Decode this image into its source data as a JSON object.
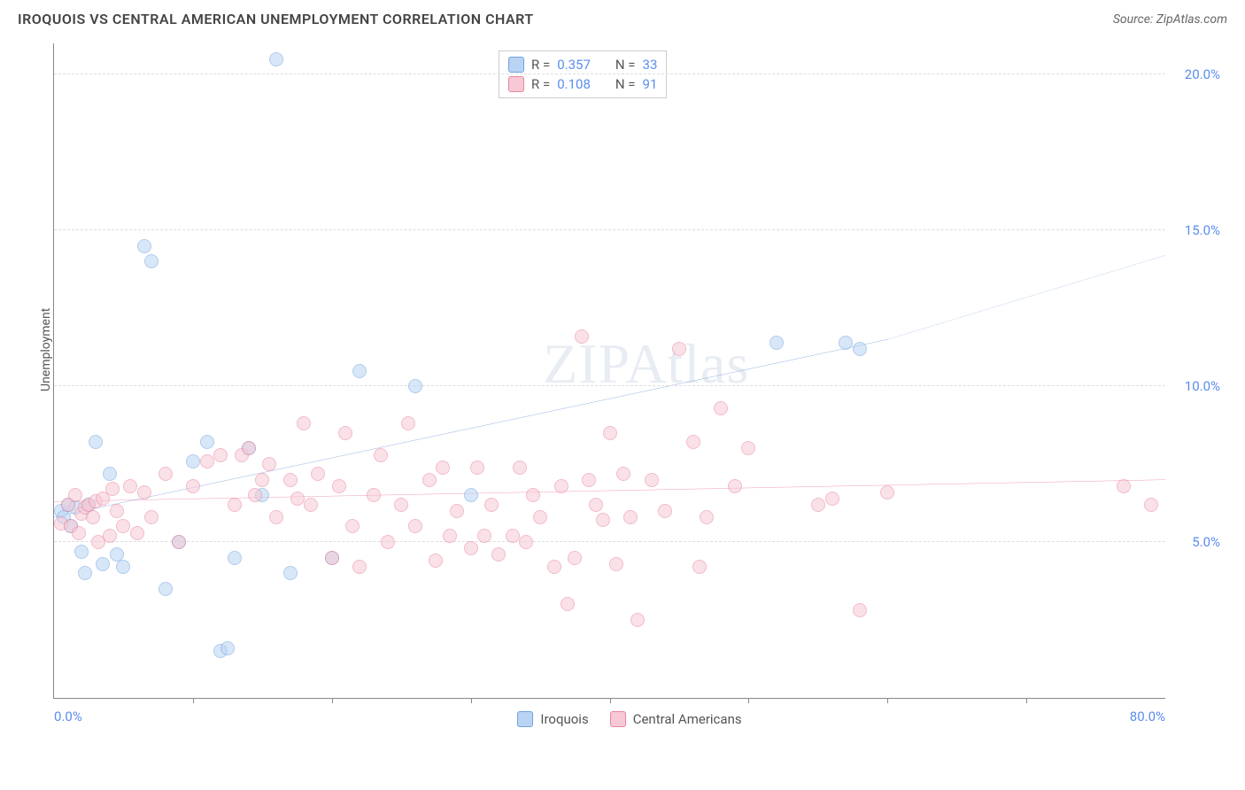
{
  "header": {
    "title": "IROQUOIS VS CENTRAL AMERICAN UNEMPLOYMENT CORRELATION CHART",
    "source": "Source: ZipAtlas.com"
  },
  "watermark": "ZIPAtlas",
  "chart": {
    "type": "scatter",
    "ylabel": "Unemployment",
    "label_fontsize": 14,
    "background_color": "#ffffff",
    "grid_color": "#dddddd",
    "axis_color": "#888888",
    "tick_label_color": "#5b8def",
    "xlim": [
      0,
      80
    ],
    "ylim": [
      0,
      21
    ],
    "x_ticks": [
      {
        "v": 0,
        "label": "0.0%"
      },
      {
        "v": 80,
        "label": "80.0%"
      }
    ],
    "x_minor_ticks": [
      10,
      20,
      30,
      40,
      50,
      60,
      70
    ],
    "y_ticks": [
      {
        "v": 5,
        "label": "5.0%"
      },
      {
        "v": 10,
        "label": "10.0%"
      },
      {
        "v": 15,
        "label": "15.0%"
      },
      {
        "v": 20,
        "label": "20.0%"
      }
    ],
    "marker_size": 16,
    "series": [
      {
        "name": "Iroquois",
        "color_fill": "#b9d4f3",
        "color_border": "#6ea3e0",
        "R": "0.357",
        "N": "33",
        "trend": {
          "x0": 0,
          "y0": 5.8,
          "x1": 60,
          "y1": 11.5,
          "dash_x1": 80,
          "dash_y1": 14.2,
          "color": "#1f5fc4",
          "width": 2
        },
        "points": [
          {
            "x": 0.5,
            "y": 6.0
          },
          {
            "x": 0.7,
            "y": 5.8
          },
          {
            "x": 1.0,
            "y": 6.2
          },
          {
            "x": 1.2,
            "y": 5.5
          },
          {
            "x": 1.5,
            "y": 6.1
          },
          {
            "x": 2.0,
            "y": 4.7
          },
          {
            "x": 2.2,
            "y": 4.0
          },
          {
            "x": 2.5,
            "y": 6.2
          },
          {
            "x": 3.0,
            "y": 8.2
          },
          {
            "x": 3.5,
            "y": 4.3
          },
          {
            "x": 4.0,
            "y": 7.2
          },
          {
            "x": 4.5,
            "y": 4.6
          },
          {
            "x": 5.0,
            "y": 4.2
          },
          {
            "x": 6.5,
            "y": 14.5
          },
          {
            "x": 7.0,
            "y": 14.0
          },
          {
            "x": 8.0,
            "y": 3.5
          },
          {
            "x": 9.0,
            "y": 5.0
          },
          {
            "x": 10.0,
            "y": 7.6
          },
          {
            "x": 11.0,
            "y": 8.2
          },
          {
            "x": 12.0,
            "y": 1.5
          },
          {
            "x": 12.5,
            "y": 1.6
          },
          {
            "x": 13.0,
            "y": 4.5
          },
          {
            "x": 14.0,
            "y": 8.0
          },
          {
            "x": 15.0,
            "y": 6.5
          },
          {
            "x": 16.0,
            "y": 20.5
          },
          {
            "x": 17.0,
            "y": 4.0
          },
          {
            "x": 20.0,
            "y": 4.5
          },
          {
            "x": 22.0,
            "y": 10.5
          },
          {
            "x": 26.0,
            "y": 10.0
          },
          {
            "x": 30.0,
            "y": 6.5
          },
          {
            "x": 52.0,
            "y": 11.4
          },
          {
            "x": 57.0,
            "y": 11.4
          },
          {
            "x": 58.0,
            "y": 11.2
          }
        ]
      },
      {
        "name": "Central Americans",
        "color_fill": "#f6c9d5",
        "color_border": "#e8849e",
        "R": "0.108",
        "N": "91",
        "trend": {
          "x0": 0,
          "y0": 6.3,
          "x1": 80,
          "y1": 7.0,
          "color": "#e35a8a",
          "width": 2.5
        },
        "points": [
          {
            "x": 0.5,
            "y": 5.6
          },
          {
            "x": 1.0,
            "y": 6.2
          },
          {
            "x": 1.2,
            "y": 5.5
          },
          {
            "x": 1.5,
            "y": 6.5
          },
          {
            "x": 1.8,
            "y": 5.3
          },
          {
            "x": 2.0,
            "y": 5.9
          },
          {
            "x": 2.2,
            "y": 6.1
          },
          {
            "x": 2.5,
            "y": 6.2
          },
          {
            "x": 2.8,
            "y": 5.8
          },
          {
            "x": 3.0,
            "y": 6.3
          },
          {
            "x": 3.2,
            "y": 5.0
          },
          {
            "x": 3.5,
            "y": 6.4
          },
          {
            "x": 4.0,
            "y": 5.2
          },
          {
            "x": 4.2,
            "y": 6.7
          },
          {
            "x": 4.5,
            "y": 6.0
          },
          {
            "x": 5.0,
            "y": 5.5
          },
          {
            "x": 5.5,
            "y": 6.8
          },
          {
            "x": 6.0,
            "y": 5.3
          },
          {
            "x": 6.5,
            "y": 6.6
          },
          {
            "x": 7.0,
            "y": 5.8
          },
          {
            "x": 8.0,
            "y": 7.2
          },
          {
            "x": 9.0,
            "y": 5.0
          },
          {
            "x": 10.0,
            "y": 6.8
          },
          {
            "x": 11.0,
            "y": 7.6
          },
          {
            "x": 12.0,
            "y": 7.8
          },
          {
            "x": 13.0,
            "y": 6.2
          },
          {
            "x": 13.5,
            "y": 7.8
          },
          {
            "x": 14.0,
            "y": 8.0
          },
          {
            "x": 14.5,
            "y": 6.5
          },
          {
            "x": 15.0,
            "y": 7.0
          },
          {
            "x": 15.5,
            "y": 7.5
          },
          {
            "x": 16.0,
            "y": 5.8
          },
          {
            "x": 17.0,
            "y": 7.0
          },
          {
            "x": 17.5,
            "y": 6.4
          },
          {
            "x": 18.0,
            "y": 8.8
          },
          {
            "x": 18.5,
            "y": 6.2
          },
          {
            "x": 19.0,
            "y": 7.2
          },
          {
            "x": 20.0,
            "y": 4.5
          },
          {
            "x": 20.5,
            "y": 6.8
          },
          {
            "x": 21.0,
            "y": 8.5
          },
          {
            "x": 21.5,
            "y": 5.5
          },
          {
            "x": 22.0,
            "y": 4.2
          },
          {
            "x": 23.0,
            "y": 6.5
          },
          {
            "x": 23.5,
            "y": 7.8
          },
          {
            "x": 24.0,
            "y": 5.0
          },
          {
            "x": 25.0,
            "y": 6.2
          },
          {
            "x": 25.5,
            "y": 8.8
          },
          {
            "x": 26.0,
            "y": 5.5
          },
          {
            "x": 27.0,
            "y": 7.0
          },
          {
            "x": 27.5,
            "y": 4.4
          },
          {
            "x": 28.0,
            "y": 7.4
          },
          {
            "x": 28.5,
            "y": 5.2
          },
          {
            "x": 29.0,
            "y": 6.0
          },
          {
            "x": 30.0,
            "y": 4.8
          },
          {
            "x": 30.5,
            "y": 7.4
          },
          {
            "x": 31.0,
            "y": 5.2
          },
          {
            "x": 31.5,
            "y": 6.2
          },
          {
            "x": 32.0,
            "y": 4.6
          },
          {
            "x": 33.0,
            "y": 5.2
          },
          {
            "x": 33.5,
            "y": 7.4
          },
          {
            "x": 34.0,
            "y": 5.0
          },
          {
            "x": 34.5,
            "y": 6.5
          },
          {
            "x": 35.0,
            "y": 5.8
          },
          {
            "x": 36.0,
            "y": 4.2
          },
          {
            "x": 36.5,
            "y": 6.8
          },
          {
            "x": 37.0,
            "y": 3.0
          },
          {
            "x": 37.5,
            "y": 4.5
          },
          {
            "x": 38.0,
            "y": 11.6
          },
          {
            "x": 38.5,
            "y": 7.0
          },
          {
            "x": 39.0,
            "y": 6.2
          },
          {
            "x": 39.5,
            "y": 5.7
          },
          {
            "x": 40.0,
            "y": 8.5
          },
          {
            "x": 40.5,
            "y": 4.3
          },
          {
            "x": 41.0,
            "y": 7.2
          },
          {
            "x": 41.5,
            "y": 5.8
          },
          {
            "x": 42.0,
            "y": 2.5
          },
          {
            "x": 43.0,
            "y": 7.0
          },
          {
            "x": 44.0,
            "y": 6.0
          },
          {
            "x": 45.0,
            "y": 11.2
          },
          {
            "x": 46.0,
            "y": 8.2
          },
          {
            "x": 46.5,
            "y": 4.2
          },
          {
            "x": 47.0,
            "y": 5.8
          },
          {
            "x": 48.0,
            "y": 9.3
          },
          {
            "x": 49.0,
            "y": 6.8
          },
          {
            "x": 50.0,
            "y": 8.0
          },
          {
            "x": 55.0,
            "y": 6.2
          },
          {
            "x": 56.0,
            "y": 6.4
          },
          {
            "x": 58.0,
            "y": 2.8
          },
          {
            "x": 60.0,
            "y": 6.6
          },
          {
            "x": 77.0,
            "y": 6.8
          },
          {
            "x": 79.0,
            "y": 6.2
          }
        ]
      }
    ],
    "top_legend": {
      "rows": [
        {
          "swatch_fill": "#b9d4f3",
          "swatch_border": "#6ea3e0",
          "r_label": "R =",
          "r_val": "0.357",
          "n_label": "N =",
          "n_val": "33"
        },
        {
          "swatch_fill": "#f6c9d5",
          "swatch_border": "#e8849e",
          "r_label": "R =",
          "r_val": "0.108",
          "n_label": "N =",
          "n_val": "91"
        }
      ]
    },
    "bottom_legend": [
      {
        "swatch_fill": "#b9d4f3",
        "swatch_border": "#6ea3e0",
        "label": "Iroquois"
      },
      {
        "swatch_fill": "#f6c9d5",
        "swatch_border": "#e8849e",
        "label": "Central Americans"
      }
    ]
  }
}
